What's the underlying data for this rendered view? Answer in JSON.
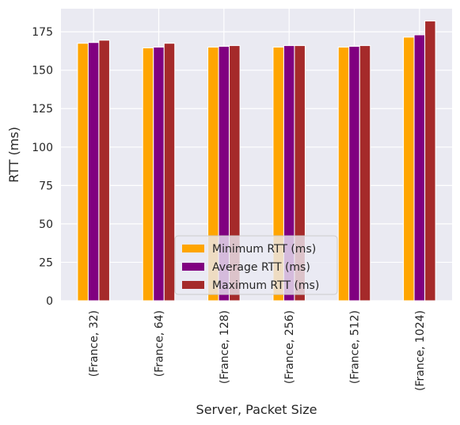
{
  "chart_data": {
    "type": "bar",
    "title": "",
    "xlabel": "Server, Packet Size",
    "ylabel": "RTT (ms)",
    "ylim": [
      0,
      190
    ],
    "yticks": [
      0,
      25,
      50,
      75,
      100,
      125,
      150,
      175
    ],
    "grid": true,
    "legend_position": "lower-center",
    "categories": [
      "(France, 32)",
      "(France, 64)",
      "(France, 128)",
      "(France, 256)",
      "(France, 512)",
      "(France, 1024)"
    ],
    "series": [
      {
        "name": "Minimum RTT (ms)",
        "color": "#FFA500",
        "values": [
          167.5,
          164.5,
          165,
          165,
          165,
          171.5
        ]
      },
      {
        "name": "Average RTT (ms)",
        "color": "#800080",
        "values": [
          168,
          165,
          165.5,
          166,
          165.5,
          173
        ]
      },
      {
        "name": "Maximum RTT (ms)",
        "color": "#A52A2A",
        "values": [
          169.5,
          167.5,
          166,
          166,
          166,
          182
        ]
      }
    ]
  },
  "colors": {
    "plot_background": "#EAEAF2",
    "grid": "#FFFFFF",
    "text": "#262626"
  }
}
